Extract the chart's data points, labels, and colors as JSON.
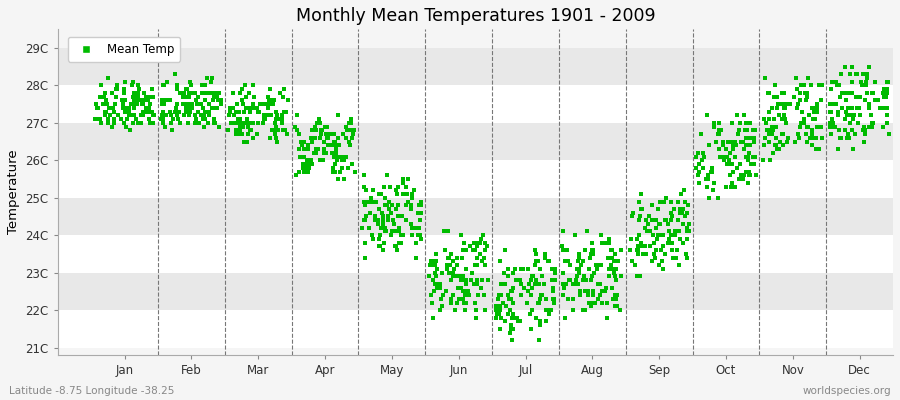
{
  "title": "Monthly Mean Temperatures 1901 - 2009",
  "ylabel": "Temperature",
  "subtitle_left": "Latitude -8.75 Longitude -38.25",
  "subtitle_right": "worldspecies.org",
  "legend_label": "Mean Temp",
  "marker_color": "#00bb00",
  "background_color": "#f5f5f5",
  "band_colors": [
    "#ffffff",
    "#e8e8e8"
  ],
  "ytick_labels": [
    "21C",
    "22C",
    "23C",
    "24C",
    "25C",
    "26C",
    "27C",
    "28C",
    "29C"
  ],
  "ytick_values": [
    21,
    22,
    23,
    24,
    25,
    26,
    27,
    28,
    29
  ],
  "ylim": [
    20.8,
    29.5
  ],
  "months": [
    "Jan",
    "Feb",
    "Mar",
    "Apr",
    "May",
    "Jun",
    "Jul",
    "Aug",
    "Sep",
    "Oct",
    "Nov",
    "Dec"
  ],
  "xlim": [
    -0.5,
    12
  ],
  "mean_temps_by_month": {
    "Jan": [
      27.0,
      27.1,
      27.3,
      27.5,
      27.2,
      26.8,
      27.0,
      27.4,
      27.6,
      27.8,
      27.9,
      27.3,
      27.1,
      27.0,
      26.9,
      27.2,
      27.5,
      27.6,
      27.7,
      28.0,
      28.1,
      27.8,
      27.4,
      27.3,
      27.1,
      27.0,
      27.2,
      27.5,
      27.6,
      27.3,
      27.1,
      27.2,
      27.4,
      27.5,
      27.0,
      26.9,
      27.2,
      27.4,
      27.6,
      27.7,
      27.8,
      27.6,
      27.3,
      27.1,
      27.0,
      27.2,
      27.5,
      27.6,
      27.7,
      27.8,
      27.4,
      27.2,
      27.0,
      27.3,
      27.5,
      27.7,
      27.9,
      28.0,
      27.7,
      27.4,
      27.2,
      27.0,
      27.3,
      27.5,
      27.7,
      27.8,
      27.6,
      27.4,
      27.2,
      27.0,
      27.3,
      27.6,
      27.7,
      27.5,
      27.3,
      27.1,
      27.4,
      27.6,
      27.8,
      27.5,
      27.3,
      27.1,
      27.4,
      27.6,
      27.9,
      28.1,
      28.2,
      27.9,
      27.6,
      27.4,
      27.2,
      27.5,
      27.7,
      27.9,
      28.0,
      27.7,
      27.5,
      27.3,
      27.1,
      27.4,
      27.6,
      27.8,
      28.0,
      27.7,
      27.5,
      27.3,
      27.1,
      27.4,
      27.7
    ],
    "Feb": [
      27.0,
      27.2,
      27.5,
      27.7,
      27.4,
      27.1,
      26.9,
      27.2,
      27.5,
      27.8,
      28.0,
      27.7,
      27.4,
      27.2,
      27.0,
      27.3,
      27.6,
      27.7,
      27.9,
      28.1,
      27.8,
      27.5,
      27.3,
      27.1,
      26.9,
      27.1,
      27.3,
      27.6,
      27.8,
      27.5,
      27.2,
      27.0,
      27.3,
      27.5,
      27.0,
      26.8,
      27.0,
      27.3,
      27.5,
      27.8,
      27.9,
      27.7,
      27.4,
      27.1,
      26.9,
      27.1,
      27.4,
      27.6,
      27.8,
      28.0,
      27.6,
      27.3,
      27.0,
      27.2,
      27.4,
      27.7,
      28.0,
      28.2,
      27.8,
      27.5,
      27.2,
      27.0,
      27.2,
      27.5,
      27.8,
      28.0,
      27.7,
      27.4,
      27.1,
      26.9,
      27.1,
      27.5,
      27.8,
      27.6,
      27.3,
      27.0,
      27.3,
      27.6,
      27.8,
      27.5,
      27.2,
      27.0,
      27.3,
      27.6,
      28.0,
      28.2,
      28.3,
      28.0,
      27.7,
      27.4,
      27.1,
      27.4,
      27.7,
      27.9,
      28.1,
      27.8,
      27.5,
      27.2,
      27.0,
      27.3,
      27.5,
      27.8,
      28.1,
      27.8,
      27.5,
      27.2,
      27.0,
      27.3,
      27.6
    ],
    "Mar": [
      27.0,
      27.1,
      27.3,
      27.5,
      27.0,
      26.7,
      26.5,
      26.8,
      27.2,
      27.5,
      27.7,
      27.4,
      27.1,
      26.9,
      26.7,
      27.0,
      27.3,
      27.4,
      27.6,
      27.9,
      27.5,
      27.2,
      27.0,
      26.8,
      26.5,
      26.8,
      27.0,
      27.3,
      27.5,
      27.2,
      27.0,
      26.8,
      27.0,
      27.2,
      26.8,
      26.5,
      26.7,
      27.0,
      27.3,
      27.5,
      27.7,
      27.4,
      27.1,
      26.8,
      26.6,
      26.8,
      27.1,
      27.4,
      27.6,
      27.8,
      27.4,
      27.1,
      26.8,
      27.0,
      27.2,
      27.5,
      27.8,
      28.0,
      27.6,
      27.3,
      27.0,
      26.7,
      26.9,
      27.2,
      27.5,
      27.8,
      27.5,
      27.2,
      26.9,
      26.6,
      26.8,
      27.2,
      27.5,
      27.3,
      27.0,
      26.7,
      27.0,
      27.3,
      27.6,
      27.3,
      27.0,
      26.7,
      27.0,
      27.3,
      27.7,
      27.9,
      28.0,
      27.7,
      27.4,
      27.1,
      26.8,
      27.1,
      27.4,
      27.6,
      27.9,
      27.5,
      27.2,
      27.0,
      26.7,
      27.0,
      27.3,
      27.5,
      27.8,
      27.4,
      27.1,
      26.8,
      26.6,
      26.9,
      27.2
    ],
    "Apr": [
      26.5,
      26.6,
      26.8,
      27.0,
      26.5,
      26.1,
      25.8,
      26.2,
      26.6,
      26.9,
      27.1,
      26.8,
      26.4,
      26.2,
      25.9,
      26.3,
      26.6,
      26.7,
      26.9,
      27.2,
      26.8,
      26.5,
      26.2,
      26.0,
      25.7,
      26.0,
      26.2,
      26.6,
      26.8,
      26.5,
      26.1,
      25.8,
      26.1,
      26.4,
      25.9,
      25.6,
      25.8,
      26.1,
      26.5,
      26.8,
      26.9,
      26.6,
      26.2,
      25.9,
      25.7,
      25.9,
      26.3,
      26.6,
      26.8,
      27.0,
      26.6,
      26.2,
      25.9,
      26.1,
      26.4,
      26.7,
      27.0,
      27.2,
      26.8,
      26.4,
      26.1,
      25.8,
      26.0,
      26.4,
      26.7,
      27.0,
      26.7,
      26.3,
      25.9,
      25.7,
      25.9,
      26.3,
      26.7,
      26.4,
      26.1,
      25.7,
      26.0,
      26.4,
      26.7,
      26.4,
      26.0,
      25.7,
      26.0,
      26.3,
      26.7,
      26.9,
      27.1,
      26.7,
      26.3,
      26.0,
      25.7,
      26.0,
      26.3,
      26.6,
      26.9,
      26.5,
      26.1,
      25.8,
      25.5,
      25.8,
      26.2,
      26.5,
      26.8,
      26.4,
      26.0,
      25.7,
      25.5,
      25.8,
      26.1
    ],
    "May": [
      25.0,
      25.1,
      25.3,
      25.5,
      24.9,
      24.5,
      24.2,
      24.6,
      25.1,
      25.4,
      25.6,
      25.2,
      24.8,
      24.5,
      24.2,
      24.6,
      24.9,
      25.1,
      25.3,
      25.6,
      25.2,
      24.8,
      24.4,
      24.1,
      23.8,
      24.2,
      24.5,
      24.9,
      25.1,
      24.7,
      24.3,
      24.0,
      24.3,
      24.7,
      24.1,
      23.8,
      24.0,
      24.4,
      24.8,
      25.1,
      25.3,
      24.9,
      24.4,
      24.1,
      23.8,
      24.1,
      24.5,
      24.8,
      25.1,
      25.3,
      24.8,
      24.4,
      24.0,
      24.3,
      24.6,
      24.9,
      25.3,
      25.5,
      25.1,
      24.6,
      24.2,
      23.9,
      24.2,
      24.6,
      24.9,
      25.2,
      24.8,
      24.3,
      23.9,
      23.7,
      24.0,
      24.4,
      24.8,
      24.5,
      24.1,
      23.7,
      24.0,
      24.4,
      24.8,
      24.4,
      24.0,
      23.7,
      24.0,
      24.4,
      24.8,
      25.0,
      25.2,
      24.7,
      24.2,
      23.9,
      23.6,
      24.0,
      24.4,
      24.7,
      25.0,
      24.5,
      24.1,
      23.7,
      23.4,
      23.8,
      24.2,
      24.6,
      24.9,
      24.4,
      24.0,
      23.6,
      23.4,
      23.8,
      24.2
    ],
    "Jun": [
      23.5,
      23.6,
      23.8,
      24.0,
      23.4,
      23.0,
      22.7,
      23.1,
      23.6,
      23.9,
      24.1,
      23.7,
      23.2,
      22.9,
      22.7,
      23.1,
      23.4,
      23.6,
      23.8,
      24.1,
      23.6,
      23.2,
      22.8,
      22.5,
      22.2,
      22.6,
      23.0,
      23.4,
      23.7,
      23.2,
      22.7,
      22.4,
      22.8,
      23.2,
      22.6,
      22.2,
      22.5,
      22.9,
      23.3,
      23.6,
      23.8,
      23.3,
      22.8,
      22.5,
      22.3,
      22.6,
      23.0,
      23.3,
      23.6,
      23.8,
      23.3,
      22.8,
      22.4,
      22.7,
      23.1,
      23.4,
      23.8,
      24.0,
      23.5,
      22.9,
      22.5,
      22.2,
      22.5,
      23.0,
      23.3,
      23.6,
      23.2,
      22.7,
      22.3,
      22.0,
      22.4,
      22.8,
      23.2,
      22.9,
      22.4,
      22.0,
      22.4,
      22.8,
      23.2,
      22.8,
      22.3,
      22.0,
      22.4,
      22.8,
      23.2,
      23.5,
      23.7,
      23.2,
      22.6,
      22.2,
      22.0,
      22.3,
      22.8,
      23.1,
      23.4,
      22.9,
      22.4,
      22.1,
      21.8,
      22.2,
      22.7,
      23.0,
      23.4,
      22.9,
      22.4,
      22.0,
      21.8,
      22.2,
      22.6
    ],
    "Jul": [
      23.0,
      23.1,
      23.3,
      23.5,
      22.9,
      22.5,
      22.2,
      22.6,
      23.1,
      23.4,
      23.6,
      23.1,
      22.7,
      22.4,
      22.1,
      22.5,
      22.9,
      23.1,
      23.3,
      23.6,
      23.1,
      22.6,
      22.2,
      21.9,
      21.6,
      22.0,
      22.4,
      22.8,
      23.1,
      22.7,
      22.2,
      21.9,
      22.2,
      22.7,
      22.0,
      21.7,
      22.0,
      22.4,
      22.8,
      23.1,
      23.3,
      22.8,
      22.3,
      21.9,
      21.7,
      22.0,
      22.4,
      22.8,
      23.1,
      23.3,
      22.8,
      22.3,
      21.9,
      22.2,
      22.6,
      22.9,
      23.3,
      23.5,
      23.0,
      22.4,
      22.0,
      21.7,
      22.0,
      22.5,
      22.8,
      23.1,
      22.7,
      22.2,
      21.8,
      21.5,
      21.8,
      22.3,
      22.7,
      22.4,
      21.9,
      21.5,
      21.8,
      22.3,
      22.7,
      22.3,
      21.8,
      21.5,
      21.8,
      22.3,
      22.7,
      23.0,
      23.2,
      22.7,
      22.1,
      21.7,
      21.5,
      21.8,
      22.3,
      22.6,
      22.9,
      22.4,
      21.9,
      21.5,
      21.2,
      21.7,
      22.1,
      22.5,
      22.8,
      22.3,
      21.8,
      21.4,
      21.2,
      21.6,
      22.0
    ],
    "Aug": [
      23.5,
      23.6,
      23.8,
      24.0,
      23.4,
      23.0,
      22.7,
      23.1,
      23.6,
      23.9,
      24.1,
      23.6,
      23.1,
      22.8,
      22.6,
      23.0,
      23.3,
      23.5,
      23.8,
      24.1,
      23.6,
      23.1,
      22.7,
      22.4,
      22.1,
      22.5,
      22.9,
      23.3,
      23.6,
      23.1,
      22.7,
      22.4,
      22.7,
      23.1,
      22.5,
      22.2,
      22.4,
      22.8,
      23.2,
      23.6,
      23.8,
      23.3,
      22.8,
      22.5,
      22.2,
      22.5,
      22.9,
      23.3,
      23.6,
      23.8,
      23.3,
      22.8,
      22.4,
      22.7,
      23.1,
      23.4,
      23.8,
      24.0,
      23.5,
      22.9,
      22.5,
      22.2,
      22.5,
      23.0,
      23.3,
      23.6,
      23.2,
      22.7,
      22.3,
      22.0,
      22.3,
      22.8,
      23.2,
      22.9,
      22.4,
      22.0,
      22.3,
      22.8,
      23.2,
      22.8,
      22.3,
      22.0,
      22.3,
      22.8,
      23.2,
      23.5,
      23.7,
      23.2,
      22.6,
      22.2,
      22.0,
      22.3,
      22.7,
      23.1,
      23.4,
      22.9,
      22.4,
      22.1,
      21.8,
      22.2,
      22.6,
      23.0,
      23.4,
      22.9,
      22.4,
      22.0,
      21.8,
      22.1,
      22.5
    ],
    "Sep": [
      24.5,
      24.6,
      24.8,
      25.0,
      24.4,
      24.1,
      23.8,
      24.2,
      24.6,
      24.9,
      25.1,
      24.7,
      24.3,
      24.0,
      23.8,
      24.1,
      24.5,
      24.7,
      24.9,
      25.2,
      24.7,
      24.3,
      23.9,
      23.7,
      23.4,
      23.7,
      24.1,
      24.5,
      24.7,
      24.3,
      23.9,
      23.6,
      23.9,
      24.3,
      23.7,
      23.4,
      23.6,
      24.0,
      24.4,
      24.7,
      24.9,
      24.5,
      24.0,
      23.7,
      23.4,
      23.7,
      24.1,
      24.5,
      24.7,
      24.9,
      24.4,
      23.9,
      23.6,
      23.9,
      24.3,
      24.6,
      24.9,
      25.1,
      24.6,
      24.1,
      23.7,
      23.5,
      23.8,
      24.2,
      24.5,
      24.8,
      24.4,
      23.9,
      23.5,
      23.2,
      23.5,
      24.0,
      24.4,
      24.1,
      23.6,
      23.3,
      23.6,
      24.1,
      24.4,
      24.1,
      23.5,
      23.2,
      23.6,
      24.0,
      24.4,
      24.7,
      24.9,
      24.4,
      23.8,
      23.5,
      23.2,
      23.5,
      24.0,
      24.3,
      24.6,
      24.1,
      23.6,
      23.2,
      22.9,
      23.3,
      23.8,
      24.2,
      24.5,
      24.0,
      23.4,
      23.1,
      22.9,
      23.3,
      23.7
    ],
    "Oct": [
      26.5,
      26.6,
      26.8,
      27.0,
      26.4,
      26.1,
      25.8,
      26.2,
      26.7,
      27.0,
      27.2,
      26.8,
      26.4,
      26.1,
      25.8,
      26.2,
      26.5,
      26.7,
      26.9,
      27.2,
      26.8,
      26.3,
      25.9,
      25.7,
      25.4,
      25.7,
      26.1,
      26.5,
      26.8,
      26.4,
      25.9,
      25.6,
      25.9,
      26.3,
      25.7,
      25.4,
      25.6,
      26.0,
      26.4,
      26.8,
      27.0,
      26.5,
      26.0,
      25.7,
      25.4,
      25.7,
      26.1,
      26.5,
      26.8,
      27.0,
      26.4,
      25.9,
      25.6,
      25.9,
      26.3,
      26.6,
      27.0,
      27.2,
      26.7,
      26.1,
      25.7,
      25.5,
      25.8,
      26.2,
      26.5,
      26.8,
      26.4,
      25.9,
      25.5,
      25.3,
      25.6,
      26.0,
      26.4,
      26.1,
      25.6,
      25.3,
      25.6,
      26.1,
      26.5,
      26.1,
      25.6,
      25.3,
      25.6,
      26.1,
      26.5,
      26.8,
      27.0,
      26.5,
      25.9,
      25.5,
      25.3,
      25.5,
      26.0,
      26.4,
      26.7,
      26.2,
      25.7,
      25.3,
      25.0,
      25.4,
      25.9,
      26.3,
      26.6,
      26.1,
      25.5,
      25.2,
      25.0,
      25.4,
      25.8
    ],
    "Nov": [
      27.5,
      27.6,
      27.8,
      28.0,
      27.4,
      27.1,
      26.8,
      27.2,
      27.7,
      28.0,
      28.2,
      27.8,
      27.4,
      27.1,
      26.8,
      27.2,
      27.5,
      27.7,
      27.9,
      28.2,
      27.8,
      27.3,
      26.9,
      26.7,
      26.4,
      26.7,
      27.1,
      27.5,
      27.8,
      27.4,
      26.9,
      26.6,
      26.9,
      27.3,
      26.7,
      26.4,
      26.6,
      27.0,
      27.4,
      27.8,
      28.0,
      27.5,
      27.0,
      26.7,
      26.4,
      26.7,
      27.1,
      27.5,
      27.8,
      28.0,
      27.4,
      26.9,
      26.6,
      26.9,
      27.3,
      27.6,
      28.0,
      28.2,
      27.7,
      27.1,
      26.7,
      26.5,
      26.8,
      27.2,
      27.5,
      27.8,
      27.4,
      26.9,
      26.5,
      26.3,
      26.6,
      27.0,
      27.4,
      27.1,
      26.6,
      26.3,
      26.6,
      27.1,
      27.5,
      27.1,
      26.6,
      26.3,
      26.6,
      27.1,
      27.5,
      27.8,
      28.0,
      27.5,
      26.9,
      26.5,
      26.3,
      26.5,
      27.0,
      27.4,
      27.7,
      27.2,
      26.7,
      26.3,
      26.0,
      26.4,
      26.9,
      27.3,
      27.6,
      27.1,
      26.5,
      26.2,
      26.0,
      26.4,
      26.8
    ],
    "Dec": [
      27.8,
      27.9,
      28.1,
      28.3,
      27.7,
      27.4,
      27.1,
      27.5,
      28.0,
      28.3,
      28.5,
      28.1,
      27.7,
      27.4,
      27.1,
      27.5,
      27.8,
      28.0,
      28.2,
      28.5,
      28.1,
      27.6,
      27.2,
      27.0,
      26.7,
      27.0,
      27.4,
      27.8,
      28.1,
      27.7,
      27.2,
      26.9,
      27.2,
      27.6,
      27.0,
      26.7,
      26.9,
      27.3,
      27.7,
      28.1,
      28.3,
      27.8,
      27.3,
      27.0,
      26.7,
      27.0,
      27.4,
      27.8,
      28.1,
      28.3,
      27.7,
      27.2,
      26.9,
      27.2,
      27.6,
      27.9,
      28.3,
      28.5,
      28.0,
      27.4,
      27.0,
      26.8,
      27.1,
      27.5,
      27.8,
      28.1,
      27.7,
      27.2,
      26.8,
      26.6,
      26.9,
      27.3,
      27.7,
      27.4,
      26.9,
      26.6,
      26.9,
      27.4,
      27.8,
      27.4,
      26.9,
      26.6,
      26.9,
      27.4,
      27.8,
      28.1,
      28.3,
      27.8,
      27.2,
      26.8,
      26.6,
      26.8,
      27.3,
      27.7,
      28.0,
      27.5,
      27.0,
      26.6,
      26.3,
      26.7,
      27.2,
      27.6,
      27.9,
      27.4,
      26.8,
      26.5,
      26.3,
      26.7,
      27.1
    ]
  }
}
